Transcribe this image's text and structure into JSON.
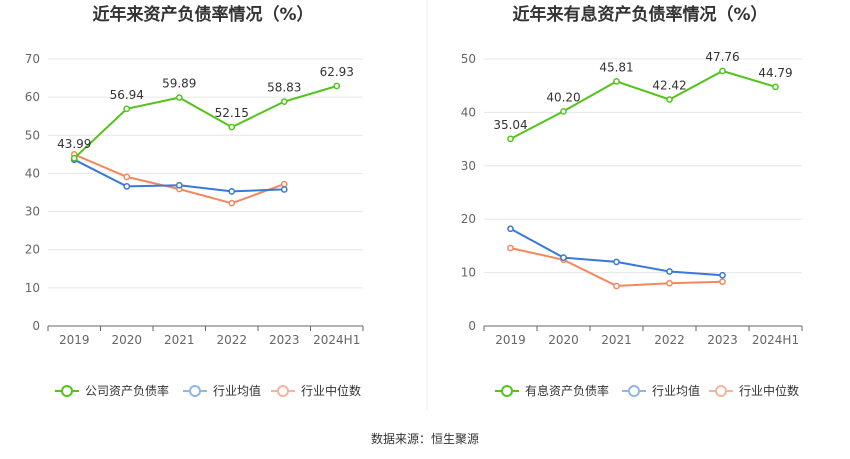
{
  "footer": {
    "source": "数据来源：恒生聚源"
  },
  "colors": {
    "company": "#52c41a",
    "avg": "#3a78d8",
    "median": "#f4875c",
    "avg_legend": "#8fb5ec",
    "median_legend": "#f6b59b"
  },
  "chart_data": [
    {
      "type": "line",
      "title": "近年来资产负债率情况（%）",
      "categories": [
        "2019",
        "2020",
        "2021",
        "2022",
        "2023",
        "2024H1"
      ],
      "ylim": [
        0,
        70
      ],
      "yticks": [
        0,
        10,
        20,
        30,
        40,
        50,
        60,
        70
      ],
      "grid": true,
      "legend_position": "bottom",
      "series": [
        {
          "name": "公司资产负债率",
          "color": "#52c41a",
          "legend_color": "#52c41a",
          "labels": true,
          "values": [
            43.99,
            56.94,
            59.89,
            52.15,
            58.83,
            62.93
          ]
        },
        {
          "name": "行业均值",
          "color": "#3a78d8",
          "legend_color": "#8fb5ec",
          "labels": false,
          "values": [
            43.6,
            36.6,
            36.9,
            35.3,
            35.8,
            null
          ]
        },
        {
          "name": "行业中位数",
          "color": "#f4875c",
          "legend_color": "#f6b59b",
          "labels": false,
          "values": [
            45.0,
            39.1,
            35.9,
            32.2,
            37.2,
            null
          ]
        }
      ]
    },
    {
      "type": "line",
      "title": "近年来有息资产负债率情况（%）",
      "categories": [
        "2019",
        "2020",
        "2021",
        "2022",
        "2023",
        "2024H1"
      ],
      "ylim": [
        0,
        50
      ],
      "yticks": [
        0,
        10,
        20,
        30,
        40,
        50
      ],
      "grid": true,
      "legend_position": "bottom",
      "series": [
        {
          "name": "有息资产负债率",
          "color": "#52c41a",
          "legend_color": "#52c41a",
          "labels": true,
          "values": [
            35.04,
            40.2,
            45.81,
            42.42,
            47.76,
            44.79
          ]
        },
        {
          "name": "行业均值",
          "color": "#3a78d8",
          "legend_color": "#8fb5ec",
          "labels": false,
          "values": [
            18.2,
            12.8,
            12.0,
            10.2,
            9.5,
            null
          ]
        },
        {
          "name": "行业中位数",
          "color": "#f4875c",
          "legend_color": "#f6b59b",
          "labels": false,
          "values": [
            14.6,
            12.4,
            7.5,
            8.0,
            8.3,
            null
          ]
        }
      ]
    }
  ]
}
